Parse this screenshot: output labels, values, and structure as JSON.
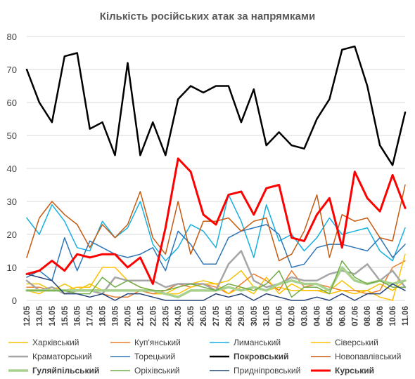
{
  "chart_data": {
    "type": "line",
    "title": "Кількість російських атак за напрямками",
    "xlabel": "",
    "ylabel": "",
    "ylim": [
      0,
      80
    ],
    "yticks": [
      0,
      10,
      20,
      30,
      40,
      50,
      60,
      70,
      80
    ],
    "grid": "horizontal",
    "legend_position": "bottom",
    "x": [
      "12.05",
      "13.05",
      "14.05",
      "15.05",
      "16.05",
      "17.05",
      "18.05",
      "19.05",
      "20.05",
      "21.05",
      "22.05",
      "23.05",
      "24.05",
      "25.05",
      "26.05",
      "27.05",
      "28.05",
      "29.05",
      "30.05",
      "31.05",
      "01.06",
      "02.06",
      "03.06",
      "04.06",
      "05.06",
      "06.06",
      "07.06",
      "08.06",
      "09.06",
      "10.06",
      "11.06"
    ],
    "x_label_step": 1,
    "series": [
      {
        "name": "Харківський",
        "color": "#f2c200",
        "width": 1.5,
        "values": [
          5,
          5,
          3,
          5,
          3,
          5,
          3,
          3,
          3,
          3,
          2,
          2,
          4,
          5,
          6,
          5,
          6,
          9,
          4,
          3,
          4,
          3,
          3,
          3,
          3,
          6,
          3,
          3,
          5,
          3,
          6
        ]
      },
      {
        "name": "Куп'янський",
        "color": "#ed7d31",
        "width": 1.5,
        "values": [
          4,
          4,
          3,
          3,
          3,
          3,
          2,
          1,
          1,
          3,
          2,
          3,
          5,
          4,
          5,
          4,
          2,
          5,
          8,
          6,
          3,
          9,
          4,
          5,
          4,
          3,
          3,
          2,
          3,
          10,
          12
        ]
      },
      {
        "name": "Лиманський",
        "color": "#17b0e0",
        "width": 1.5,
        "values": [
          25,
          20,
          29,
          24,
          16,
          15,
          24,
          19,
          22,
          30,
          17,
          12,
          16,
          23,
          21,
          16,
          32,
          24,
          13,
          29,
          18,
          20,
          15,
          19,
          25,
          20,
          21,
          22,
          15,
          12,
          22
        ]
      },
      {
        "name": "Сіверський",
        "color": "#ffc000",
        "width": 1.5,
        "values": [
          3,
          2,
          4,
          3,
          4,
          4,
          10,
          10,
          6,
          4,
          3,
          2,
          2,
          4,
          5,
          5,
          2,
          4,
          2,
          7,
          2,
          5,
          3,
          3,
          2,
          3,
          2,
          3,
          1,
          0,
          14
        ]
      },
      {
        "name": "Краматорський",
        "color": "#a5a5a5",
        "width": 2.5,
        "values": [
          6,
          3,
          4,
          2,
          3,
          3,
          2,
          7,
          6,
          6,
          6,
          4,
          5,
          5,
          5,
          3,
          11,
          15,
          6,
          4,
          5,
          7,
          6,
          6,
          8,
          9,
          8,
          11,
          6,
          9,
          4
        ]
      },
      {
        "name": "Торецький",
        "color": "#2e75b6",
        "width": 1.5,
        "values": [
          7,
          9,
          6,
          19,
          9,
          18,
          16,
          14,
          13,
          14,
          16,
          9,
          21,
          17,
          11,
          11,
          19,
          21,
          22,
          23,
          20,
          10,
          11,
          16,
          17,
          17,
          16,
          15,
          19,
          13,
          17
        ]
      },
      {
        "name": "Покровський",
        "color": "#000000",
        "width": 2.5,
        "values": [
          70,
          60,
          54,
          74,
          75,
          52,
          54,
          44,
          72,
          44,
          54,
          44,
          61,
          65,
          63,
          65,
          65,
          54,
          64,
          47,
          51,
          47,
          46,
          55,
          61,
          76,
          77,
          65,
          47,
          41,
          57
        ]
      },
      {
        "name": "Новопавлівський",
        "color": "#c55a11",
        "width": 1.5,
        "values": [
          13,
          25,
          30,
          26,
          23,
          16,
          23,
          19,
          23,
          33,
          19,
          14,
          30,
          14,
          24,
          24,
          25,
          21,
          24,
          25,
          12,
          14,
          21,
          32,
          13,
          26,
          24,
          25,
          19,
          18,
          35
        ]
      },
      {
        "name": "Гуляйпільський",
        "color": "#a9d18e",
        "width": 3.5,
        "values": [
          3,
          3,
          3,
          3,
          3,
          3,
          3,
          3,
          3,
          3,
          3,
          2,
          1,
          3,
          3,
          3,
          4,
          3,
          4,
          3,
          5,
          6,
          5,
          5,
          3,
          10,
          6,
          5,
          6,
          5,
          6
        ]
      },
      {
        "name": "Оріхівський",
        "color": "#70ad47",
        "width": 1.5,
        "values": [
          3,
          3,
          3,
          3,
          2,
          2,
          7,
          4,
          6,
          4,
          3,
          3,
          4,
          5,
          4,
          3,
          5,
          4,
          3,
          5,
          9,
          1,
          4,
          4,
          2,
          12,
          7,
          5,
          6,
          4,
          4
        ]
      },
      {
        "name": "Придніпровський",
        "color": "#264478",
        "width": 1.5,
        "values": [
          8,
          7,
          6,
          2,
          2,
          1,
          2,
          0,
          2,
          2,
          1,
          0,
          0,
          0,
          0,
          2,
          1,
          2,
          0,
          2,
          1,
          0,
          0,
          1,
          0,
          2,
          0,
          2,
          2,
          5,
          3
        ]
      },
      {
        "name": "Курський",
        "color": "#ff0000",
        "width": 3,
        "values": [
          8,
          9,
          12,
          9,
          14,
          13,
          14,
          14,
          10,
          13,
          5,
          22,
          43,
          39,
          26,
          23,
          32,
          33,
          26,
          34,
          35,
          19,
          18,
          26,
          31,
          16,
          39,
          31,
          27,
          38,
          28
        ]
      }
    ]
  }
}
